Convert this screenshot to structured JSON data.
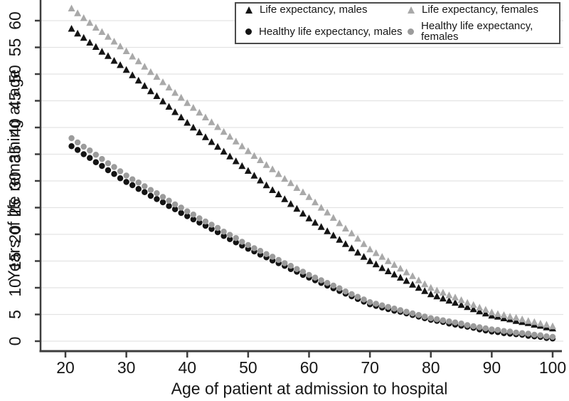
{
  "chart_data": {
    "type": "scatter",
    "title": "",
    "xlabel": "Age of patient at admission to hospital",
    "ylabel": "Years of life remaining at age",
    "xlim": [
      18.5,
      102
    ],
    "ylim": [
      0,
      63
    ],
    "x_ticks": [
      20,
      30,
      40,
      50,
      60,
      70,
      80,
      90,
      100
    ],
    "y_ticks": [
      0,
      5,
      10,
      15,
      20,
      25,
      30,
      35,
      40,
      45,
      50,
      55,
      60
    ],
    "grid": "horizontal-only",
    "legend_position": "top-right-inside",
    "ages": [
      21,
      22,
      23,
      24,
      25,
      26,
      27,
      28,
      29,
      30,
      31,
      32,
      33,
      34,
      35,
      36,
      37,
      38,
      39,
      40,
      41,
      42,
      43,
      44,
      45,
      46,
      47,
      48,
      49,
      50,
      51,
      52,
      53,
      54,
      55,
      56,
      57,
      58,
      59,
      60,
      61,
      62,
      63,
      64,
      65,
      66,
      67,
      68,
      69,
      70,
      71,
      72,
      73,
      74,
      75,
      76,
      77,
      78,
      79,
      80,
      81,
      82,
      83,
      84,
      85,
      86,
      87,
      88,
      89,
      90,
      91,
      92,
      93,
      94,
      95,
      96,
      97,
      98,
      99,
      100
    ],
    "series": [
      {
        "name": "Life expectancy, males",
        "marker": "triangle",
        "color": "#141414",
        "values": [
          58.5,
          57.6,
          56.8,
          55.9,
          55.1,
          54.2,
          53.4,
          52.5,
          51.7,
          50.8,
          49.8,
          48.8,
          47.8,
          46.8,
          45.9,
          44.9,
          43.9,
          42.9,
          41.9,
          40.9,
          40.0,
          39.1,
          38.2,
          37.3,
          36.4,
          35.5,
          34.6,
          33.7,
          32.8,
          31.9,
          31.0,
          30.1,
          29.2,
          28.3,
          27.5,
          26.6,
          25.7,
          24.8,
          23.9,
          23.0,
          22.2,
          21.4,
          20.6,
          19.8,
          19.0,
          18.2,
          17.4,
          16.6,
          15.8,
          15.0,
          14.4,
          13.7,
          13.1,
          12.5,
          11.9,
          11.3,
          10.6,
          10.0,
          9.4,
          8.8,
          8.4,
          8.0,
          7.6,
          7.2,
          6.8,
          6.4,
          6.0,
          5.6,
          5.2,
          4.8,
          4.6,
          4.3,
          4.1,
          3.8,
          3.6,
          3.4,
          3.1,
          2.9,
          2.6,
          2.4
        ]
      },
      {
        "name": "Life expectancy, females",
        "marker": "triangle",
        "color": "#a9a9a9",
        "values": [
          62.3,
          61.4,
          60.5,
          59.6,
          58.7,
          57.9,
          57.0,
          56.1,
          55.2,
          54.3,
          53.3,
          52.4,
          51.4,
          50.4,
          49.5,
          48.5,
          47.5,
          46.5,
          45.6,
          44.6,
          43.7,
          42.8,
          41.9,
          41.0,
          40.1,
          39.2,
          38.3,
          37.4,
          36.5,
          35.6,
          34.7,
          33.9,
          33.0,
          32.2,
          31.3,
          30.4,
          29.6,
          28.7,
          27.9,
          27.0,
          26.0,
          25.0,
          24.1,
          23.1,
          22.1,
          21.1,
          20.2,
          19.2,
          18.2,
          17.2,
          16.5,
          15.8,
          15.0,
          14.3,
          13.6,
          12.9,
          12.2,
          11.4,
          10.7,
          10.0,
          9.5,
          9.1,
          8.6,
          8.2,
          7.7,
          7.2,
          6.8,
          6.3,
          5.9,
          5.4,
          5.1,
          4.9,
          4.6,
          4.4,
          4.1,
          3.8,
          3.6,
          3.3,
          3.1,
          2.8
        ]
      },
      {
        "name": "Healthy life expectancy, males",
        "marker": "circle",
        "color": "#141414",
        "values": [
          36.5,
          35.8,
          35.0,
          34.3,
          33.5,
          32.8,
          32.0,
          31.3,
          30.5,
          29.8,
          29.2,
          28.5,
          27.9,
          27.2,
          26.6,
          26.0,
          25.3,
          24.7,
          24.0,
          23.4,
          22.8,
          22.2,
          21.6,
          21.0,
          20.4,
          19.7,
          19.1,
          18.5,
          17.9,
          17.3,
          16.8,
          16.2,
          15.7,
          15.1,
          14.6,
          14.1,
          13.5,
          13.0,
          12.4,
          11.9,
          11.4,
          10.9,
          10.4,
          9.9,
          9.4,
          8.9,
          8.4,
          7.9,
          7.4,
          6.9,
          6.6,
          6.3,
          6.0,
          5.7,
          5.5,
          5.2,
          4.9,
          4.6,
          4.3,
          4.0,
          3.8,
          3.6,
          3.3,
          3.1,
          2.9,
          2.7,
          2.5,
          2.2,
          2.0,
          1.8,
          1.7,
          1.5,
          1.4,
          1.3,
          1.2,
          1.0,
          0.9,
          0.8,
          0.6,
          0.5
        ]
      },
      {
        "name": "Healthy life expectancy, females",
        "marker": "circle",
        "color": "#9b9b9b",
        "values": [
          38.0,
          37.2,
          36.4,
          35.7,
          34.9,
          34.1,
          33.3,
          32.6,
          31.8,
          31.0,
          30.3,
          29.7,
          29.0,
          28.3,
          27.7,
          27.0,
          26.3,
          25.6,
          25.0,
          24.3,
          23.7,
          23.0,
          22.4,
          21.8,
          21.2,
          20.5,
          19.9,
          19.3,
          18.6,
          18.0,
          17.4,
          16.9,
          16.3,
          15.8,
          15.2,
          14.6,
          14.1,
          13.5,
          13.0,
          12.4,
          11.9,
          11.4,
          10.9,
          10.4,
          9.9,
          9.3,
          8.8,
          8.3,
          7.8,
          7.3,
          7.0,
          6.7,
          6.4,
          6.1,
          5.8,
          5.5,
          5.2,
          4.9,
          4.6,
          4.3,
          4.1,
          3.9,
          3.7,
          3.5,
          3.3,
          3.0,
          2.8,
          2.6,
          2.4,
          2.2,
          2.1,
          1.9,
          1.8,
          1.6,
          1.5,
          1.4,
          1.2,
          1.1,
          0.9,
          0.8
        ]
      }
    ]
  }
}
